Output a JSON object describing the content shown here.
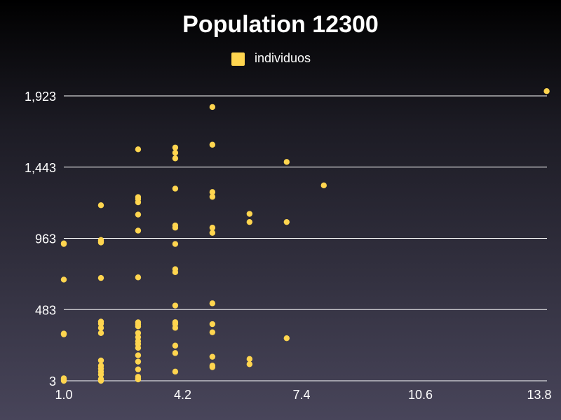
{
  "chart_data": {
    "type": "scatter",
    "title": "Population 12300",
    "legend": {
      "placement": "top-center",
      "entries": [
        "individuos"
      ]
    },
    "xlim": [
      1.0,
      13.8
    ],
    "ylim": [
      3,
      1923
    ],
    "x_ticks": [
      "1.0",
      "4.2",
      "7.4",
      "10.6",
      "13.8"
    ],
    "y_ticks": [
      "3",
      "483",
      "963",
      "1,443",
      "1,923"
    ],
    "grid": {
      "horizontal": true,
      "vertical": false
    },
    "colors": {
      "points": "#ffd54f",
      "grid": "#ffffff"
    },
    "series": [
      {
        "name": "individuos",
        "points": [
          [
            1,
            20
          ],
          [
            1,
            10
          ],
          [
            1,
            3
          ],
          [
            1,
            316
          ],
          [
            1,
            321
          ],
          [
            1,
            685
          ],
          [
            1,
            925
          ],
          [
            1,
            929
          ],
          [
            2,
            10
          ],
          [
            2,
            3
          ],
          [
            2,
            15
          ],
          [
            2,
            45
          ],
          [
            2,
            65
          ],
          [
            2,
            85
          ],
          [
            2,
            105
          ],
          [
            2,
            140
          ],
          [
            2,
            325
          ],
          [
            2,
            360
          ],
          [
            2,
            388
          ],
          [
            2,
            402
          ],
          [
            2,
            696
          ],
          [
            2,
            935
          ],
          [
            2,
            944
          ],
          [
            2,
            952
          ],
          [
            2,
            1186
          ],
          [
            3,
            30
          ],
          [
            3,
            20
          ],
          [
            3,
            12
          ],
          [
            3,
            80
          ],
          [
            3,
            132
          ],
          [
            3,
            175
          ],
          [
            3,
            225
          ],
          [
            3,
            250
          ],
          [
            3,
            270
          ],
          [
            3,
            297
          ],
          [
            3,
            325
          ],
          [
            3,
            370
          ],
          [
            3,
            383
          ],
          [
            3,
            397
          ],
          [
            3,
            700
          ],
          [
            3,
            1015
          ],
          [
            3,
            1123
          ],
          [
            3,
            1206
          ],
          [
            3,
            1227
          ],
          [
            3,
            1241
          ],
          [
            3,
            1563
          ],
          [
            4,
            65
          ],
          [
            4,
            190
          ],
          [
            4,
            240
          ],
          [
            4,
            360
          ],
          [
            4,
            385
          ],
          [
            4,
            398
          ],
          [
            4,
            510
          ],
          [
            4,
            735
          ],
          [
            4,
            755
          ],
          [
            4,
            925
          ],
          [
            4,
            1035
          ],
          [
            4,
            1050
          ],
          [
            4,
            1298
          ],
          [
            4,
            1502
          ],
          [
            4,
            1540
          ],
          [
            4,
            1575
          ],
          [
            5,
            95
          ],
          [
            5,
            105
          ],
          [
            5,
            165
          ],
          [
            5,
            330
          ],
          [
            5,
            385
          ],
          [
            5,
            525
          ],
          [
            5,
            1000
          ],
          [
            5,
            1035
          ],
          [
            5,
            1243
          ],
          [
            5,
            1275
          ],
          [
            5,
            1594
          ],
          [
            5,
            1848
          ],
          [
            6,
            115
          ],
          [
            6,
            150
          ],
          [
            6,
            1073
          ],
          [
            6,
            1128
          ],
          [
            7,
            290
          ],
          [
            7,
            1073
          ],
          [
            7,
            1478
          ],
          [
            8,
            1320
          ],
          [
            14,
            1955
          ]
        ]
      }
    ]
  }
}
